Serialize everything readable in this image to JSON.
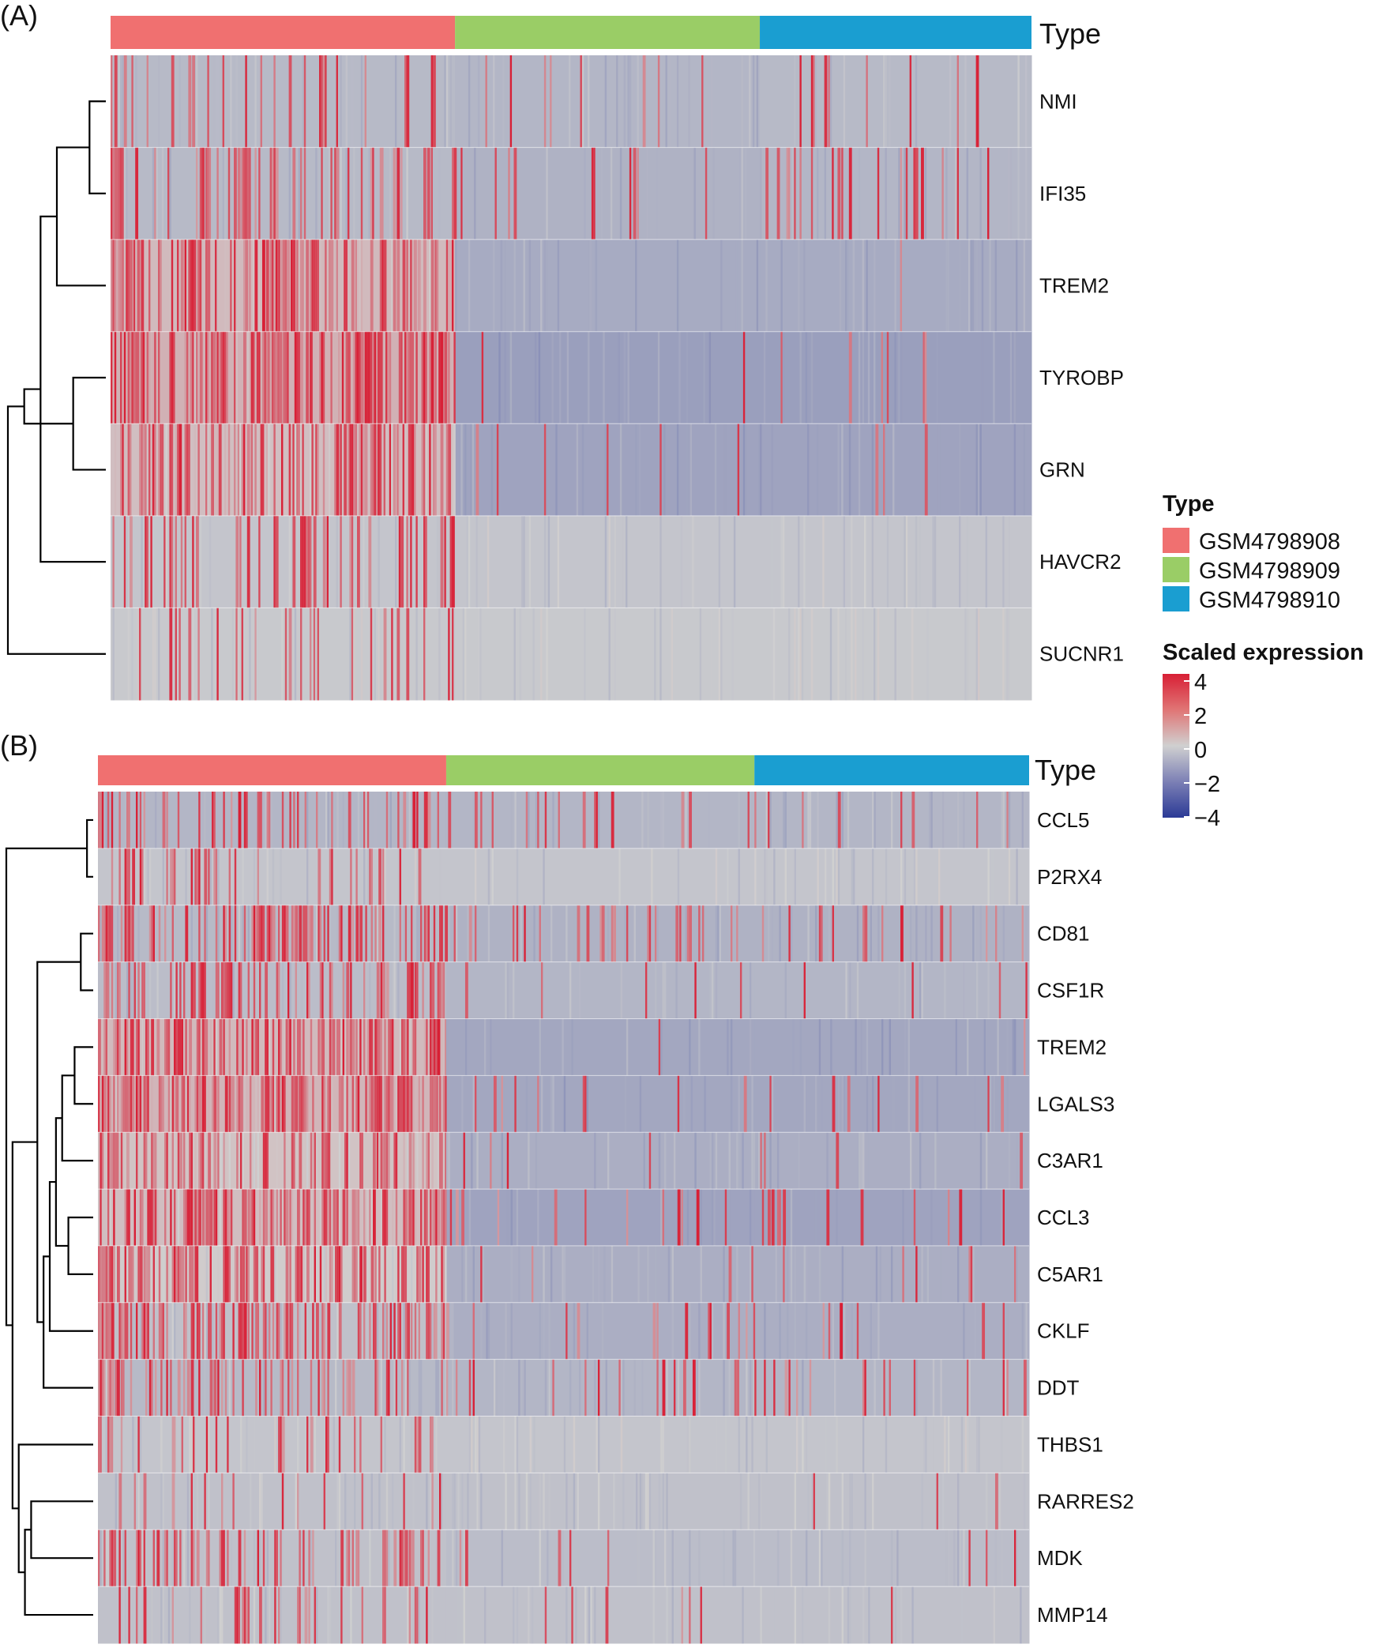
{
  "chart_data": [
    {
      "type": "heatmap",
      "panel_label": "(A)",
      "annotation_label": "Type",
      "column_groups": [
        {
          "name": "GSM4798908",
          "fraction": 0.374
        },
        {
          "name": "GSM4798909",
          "fraction": 0.331
        },
        {
          "name": "GSM4798910",
          "fraction": 0.295
        }
      ],
      "rows": [
        "NMI",
        "IFI35",
        "TREM2",
        "TYROBP",
        "GRN",
        "HAVCR2",
        "SUCNR1"
      ],
      "row_profiles": [
        {
          "bg": [
            -0.6,
            -0.7,
            -0.6
          ],
          "density": [
            0.18,
            0.05,
            0.06
          ],
          "edge_hot": true
        },
        {
          "bg": [
            -0.6,
            -0.8,
            -0.7
          ],
          "density": [
            0.22,
            0.07,
            0.09
          ],
          "edge_hot": true
        },
        {
          "bg": [
            0.5,
            -1.0,
            -1.0
          ],
          "density": [
            0.45,
            0.01,
            0.01
          ],
          "edge_hot": false
        },
        {
          "bg": [
            0.7,
            -1.3,
            -1.3
          ],
          "density": [
            0.55,
            0.03,
            0.03
          ],
          "edge_hot": false
        },
        {
          "bg": [
            0.4,
            -1.2,
            -1.2
          ],
          "density": [
            0.45,
            0.04,
            0.04
          ],
          "edge_hot": false
        },
        {
          "bg": [
            -0.3,
            -0.3,
            -0.3
          ],
          "density": [
            0.22,
            0.0,
            0.004
          ],
          "edge_hot": false
        },
        {
          "bg": [
            -0.2,
            -0.2,
            -0.2
          ],
          "density": [
            0.12,
            0.0,
            0.0
          ],
          "edge_hot": false
        }
      ],
      "dendrogram": [
        [
          0,
          1
        ],
        [
          3,
          4
        ],
        [
          2,
          7
        ],
        [
          5,
          9
        ],
        [
          8,
          10
        ],
        [
          6,
          11
        ]
      ]
    },
    {
      "type": "heatmap",
      "panel_label": "(B)",
      "annotation_label": "Type",
      "column_groups": [
        {
          "name": "GSM4798908",
          "fraction": 0.374
        },
        {
          "name": "GSM4798909",
          "fraction": 0.331
        },
        {
          "name": "GSM4798910",
          "fraction": 0.295
        }
      ],
      "rows": [
        "CCL5",
        "P2RX4",
        "CD81",
        "CSF1R",
        "TREM2",
        "LGALS3",
        "C3AR1",
        "CCL3",
        "C5AR1",
        "CKLF",
        "DDT",
        "THBS1",
        "RARRES2",
        "MDK",
        "MMP14"
      ],
      "row_profiles": [
        {
          "bg": [
            -0.7,
            -0.7,
            -0.7
          ],
          "density": [
            0.2,
            0.06,
            0.07
          ],
          "edge_hot": false
        },
        {
          "bg": [
            -0.3,
            -0.3,
            -0.3
          ],
          "density": [
            0.15,
            0.0,
            0.003
          ],
          "edge_hot": false
        },
        {
          "bg": [
            -0.6,
            -0.8,
            -0.8
          ],
          "density": [
            0.4,
            0.1,
            0.08
          ],
          "edge_hot": true
        },
        {
          "bg": [
            -0.5,
            -0.7,
            -0.7
          ],
          "density": [
            0.3,
            0.04,
            0.03
          ],
          "edge_hot": false
        },
        {
          "bg": [
            0.5,
            -1.1,
            -1.1
          ],
          "density": [
            0.5,
            0.01,
            0.01
          ],
          "edge_hot": false
        },
        {
          "bg": [
            0.6,
            -1.1,
            -1.1
          ],
          "density": [
            0.5,
            0.04,
            0.04
          ],
          "edge_hot": false
        },
        {
          "bg": [
            0.3,
            -0.9,
            -0.9
          ],
          "density": [
            0.45,
            0.02,
            0.03
          ],
          "edge_hot": false
        },
        {
          "bg": [
            0.4,
            -1.2,
            -1.2
          ],
          "density": [
            0.45,
            0.06,
            0.06
          ],
          "edge_hot": false
        },
        {
          "bg": [
            0.1,
            -0.9,
            -0.9
          ],
          "density": [
            0.4,
            0.03,
            0.03
          ],
          "edge_hot": true
        },
        {
          "bg": [
            -0.4,
            -0.9,
            -0.9
          ],
          "density": [
            0.4,
            0.12,
            0.08
          ],
          "edge_hot": true
        },
        {
          "bg": [
            -0.6,
            -0.7,
            -0.7
          ],
          "density": [
            0.3,
            0.12,
            0.1
          ],
          "edge_hot": true
        },
        {
          "bg": [
            -0.3,
            -0.3,
            -0.3
          ],
          "density": [
            0.12,
            0.0,
            0.0
          ],
          "edge_hot": true
        },
        {
          "bg": [
            -0.4,
            -0.4,
            -0.4
          ],
          "density": [
            0.1,
            0.01,
            0.01
          ],
          "edge_hot": false
        },
        {
          "bg": [
            -0.4,
            -0.5,
            -0.5
          ],
          "density": [
            0.25,
            0.05,
            0.04
          ],
          "edge_hot": true
        },
        {
          "bg": [
            -0.4,
            -0.4,
            -0.4
          ],
          "density": [
            0.18,
            0.02,
            0.02
          ],
          "edge_hot": false
        }
      ],
      "dendrogram": [
        [
          0,
          1
        ],
        [
          2,
          3
        ],
        [
          4,
          5
        ],
        [
          7,
          8
        ],
        [
          17,
          6
        ],
        [
          18,
          19
        ],
        [
          20,
          9
        ],
        [
          21,
          10
        ],
        [
          16,
          22
        ],
        [
          12,
          13
        ],
        [
          24,
          14
        ],
        [
          11,
          25
        ],
        [
          23,
          26
        ],
        [
          15,
          27
        ]
      ]
    }
  ],
  "legend": {
    "type_title": "Type",
    "type_items": [
      {
        "label": "GSM4798908",
        "color": "#F07070"
      },
      {
        "label": "GSM4798909",
        "color": "#9ACD66"
      },
      {
        "label": "GSM4798910",
        "color": "#1A9ED1"
      }
    ],
    "scale_title": "Scaled expression",
    "scale_ticks": [
      "4",
      "2",
      "0",
      "−2",
      "−4"
    ],
    "scale_range": [
      -4,
      4
    ],
    "scale_colors": {
      "low": "#2B3A96",
      "mid": "#D0D0D0",
      "high": "#D81F35"
    }
  }
}
